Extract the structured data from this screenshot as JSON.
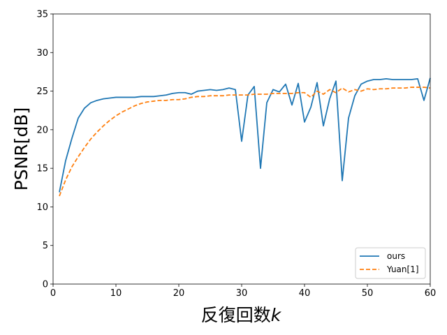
{
  "chart_data": {
    "type": "line",
    "title": "",
    "xlabel": "反復回数",
    "xlabel_var": "k",
    "ylabel": "PSNR[dB]",
    "xlim": [
      0,
      60
    ],
    "ylim": [
      0,
      35
    ],
    "xticks": [
      0,
      10,
      20,
      30,
      40,
      50,
      60
    ],
    "yticks": [
      0,
      5,
      10,
      15,
      20,
      25,
      30,
      35
    ],
    "grid": false,
    "legend_position": "lower-right",
    "series": [
      {
        "name": "ours",
        "color": "#1f77b4",
        "dash": "solid",
        "x": [
          1,
          2,
          3,
          4,
          5,
          6,
          7,
          8,
          9,
          10,
          11,
          12,
          13,
          14,
          15,
          16,
          17,
          18,
          19,
          20,
          21,
          22,
          23,
          24,
          25,
          26,
          27,
          28,
          29,
          30,
          31,
          32,
          33,
          34,
          35,
          36,
          37,
          38,
          39,
          40,
          41,
          42,
          43,
          44,
          45,
          46,
          47,
          48,
          49,
          50,
          51,
          52,
          53,
          54,
          55,
          56,
          57,
          58,
          59,
          60
        ],
        "values": [
          11.9,
          16.0,
          18.9,
          21.5,
          22.8,
          23.5,
          23.8,
          24.0,
          24.1,
          24.2,
          24.2,
          24.2,
          24.2,
          24.3,
          24.3,
          24.3,
          24.4,
          24.5,
          24.7,
          24.8,
          24.8,
          24.6,
          25.0,
          25.1,
          25.2,
          25.1,
          25.2,
          25.4,
          25.2,
          18.5,
          24.5,
          25.6,
          15.0,
          23.5,
          25.2,
          24.9,
          25.9,
          23.2,
          26.0,
          21.0,
          22.9,
          26.1,
          20.5,
          24.0,
          26.3,
          13.4,
          21.5,
          24.4,
          25.9,
          26.3,
          26.5,
          26.5,
          26.6,
          26.5,
          26.5,
          26.5,
          26.5,
          26.6,
          23.8,
          26.7
        ]
      },
      {
        "name": "Yuan[1]",
        "color": "#ff7f0e",
        "dash": "dashed",
        "x": [
          1,
          2,
          3,
          4,
          5,
          6,
          7,
          8,
          9,
          10,
          11,
          12,
          13,
          14,
          15,
          16,
          17,
          18,
          19,
          20,
          21,
          22,
          23,
          24,
          25,
          26,
          27,
          28,
          29,
          30,
          31,
          32,
          33,
          34,
          35,
          36,
          37,
          38,
          39,
          40,
          41,
          42,
          43,
          44,
          45,
          46,
          47,
          48,
          49,
          50,
          51,
          52,
          53,
          54,
          55,
          56,
          57,
          58,
          59,
          60
        ],
        "values": [
          11.4,
          13.5,
          15.2,
          16.5,
          17.7,
          18.8,
          19.7,
          20.5,
          21.2,
          21.8,
          22.3,
          22.7,
          23.1,
          23.4,
          23.6,
          23.7,
          23.8,
          23.8,
          23.9,
          23.9,
          24.0,
          24.2,
          24.3,
          24.3,
          24.4,
          24.4,
          24.4,
          24.5,
          24.5,
          24.5,
          24.5,
          24.6,
          24.6,
          24.6,
          24.7,
          24.7,
          24.7,
          24.7,
          24.8,
          24.8,
          24.2,
          25.0,
          24.6,
          25.2,
          24.8,
          25.4,
          24.9,
          25.2,
          25.0,
          25.3,
          25.2,
          25.3,
          25.3,
          25.4,
          25.4,
          25.4,
          25.5,
          25.5,
          25.5,
          25.4
        ]
      }
    ]
  }
}
